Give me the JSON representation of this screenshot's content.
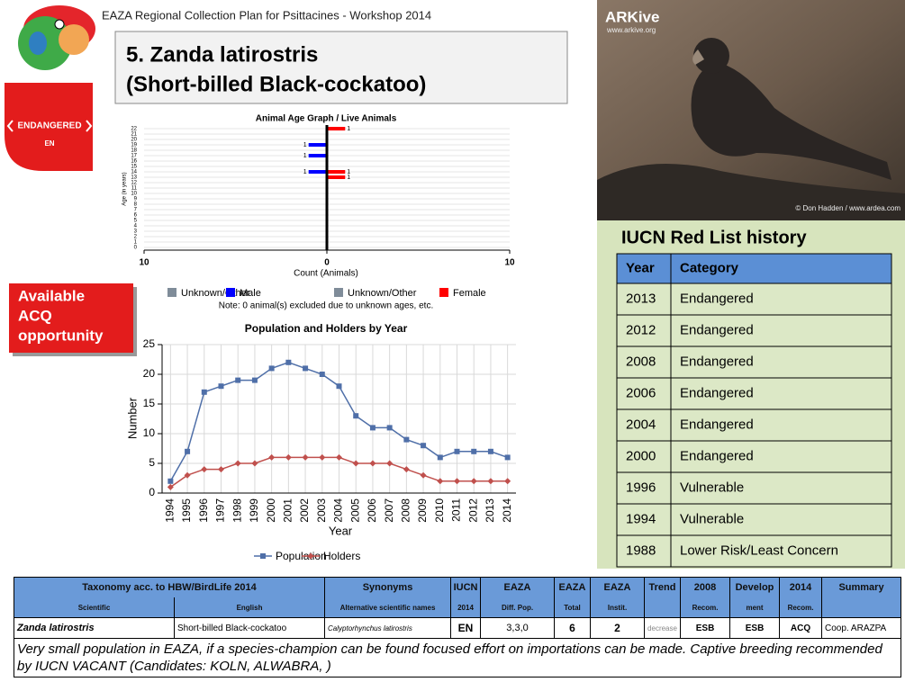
{
  "header": {
    "text": "EAZA Regional Collection Plan for Psittacines - Workshop 2014"
  },
  "title": {
    "line1": "5. Zanda latirostris",
    "line2": "(Short-billed Black-cockatoo)"
  },
  "status": {
    "label": "ENDANGERED",
    "code": "EN"
  },
  "opportunity": {
    "lines": [
      "Available",
      "ACQ",
      "opportunity"
    ]
  },
  "photo": {
    "brand": "ARKive",
    "url": "www.arkive.org",
    "credit": "© Don Hadden / www.ardea.com"
  },
  "chart_data": [
    {
      "type": "bar",
      "orientation": "horizontal",
      "title": "Animal Age Graph / Live Animals",
      "x_label": "Count (Animals)",
      "y_label": "Age (in years)",
      "categories": [
        "0",
        "1",
        "2",
        "3",
        "4",
        "5",
        "6",
        "7",
        "8",
        "9",
        "10",
        "11",
        "12",
        "13",
        "14",
        "15",
        "16",
        "17",
        "18",
        "19",
        "20",
        "21",
        "22"
      ],
      "series": [
        {
          "name": "Unknown/Other",
          "color": "#7f8c99",
          "side": "left",
          "values": [
            null,
            null,
            null,
            null,
            null,
            null,
            null,
            null,
            null,
            null,
            null,
            null,
            null,
            null,
            null,
            null,
            null,
            null,
            null,
            null,
            null,
            null,
            null
          ]
        },
        {
          "name": "Male",
          "color": "#0000ff",
          "side": "left",
          "values": [
            null,
            null,
            null,
            null,
            null,
            null,
            null,
            null,
            null,
            null,
            null,
            null,
            null,
            null,
            1,
            null,
            null,
            1,
            null,
            1,
            null,
            null,
            null
          ]
        },
        {
          "name": "Unknown/Other",
          "color": "#7f8c99",
          "side": "right",
          "values": [
            null,
            null,
            null,
            null,
            null,
            null,
            null,
            null,
            null,
            null,
            null,
            null,
            null,
            null,
            null,
            null,
            null,
            null,
            null,
            null,
            null,
            null,
            null
          ]
        },
        {
          "name": "Female",
          "color": "#ff0000",
          "side": "right",
          "values": [
            null,
            null,
            null,
            null,
            null,
            null,
            null,
            null,
            null,
            null,
            null,
            null,
            null,
            1,
            1,
            null,
            null,
            null,
            null,
            null,
            null,
            null,
            1
          ]
        }
      ],
      "xlim": [
        -10,
        10
      ],
      "xticks": [
        {
          "value": -10,
          "label": "10"
        },
        0,
        10
      ],
      "grid": true,
      "note": "Note: 0 animal(s) excluded due to unknown ages, etc."
    },
    {
      "type": "line",
      "title": "Population and Holders by Year",
      "x_label": "Year",
      "y_label": "Number",
      "categories": [
        "1994",
        "1995",
        "1996",
        "1997",
        "1998",
        "1999",
        "2000",
        "2001",
        "2002",
        "2003",
        "2004",
        "2005",
        "2006",
        "2007",
        "2008",
        "2009",
        "2010",
        "2011",
        "2012",
        "2013",
        "2014"
      ],
      "series": [
        {
          "name": "Population",
          "color": "#4f6fa8",
          "marker": "square",
          "values": [
            2,
            7,
            17,
            18,
            19,
            19,
            21,
            22,
            21,
            20,
            18,
            13,
            11,
            11,
            9,
            8,
            6,
            7,
            7,
            7,
            6
          ]
        },
        {
          "name": "Holders",
          "color": "#c0504d",
          "marker": "diamond",
          "values": [
            1,
            3,
            4,
            4,
            5,
            5,
            6,
            6,
            6,
            6,
            6,
            5,
            5,
            5,
            4,
            3,
            2,
            2,
            2,
            2,
            2
          ]
        }
      ],
      "ylim": [
        0,
        25
      ],
      "yticks": [
        0,
        5,
        10,
        15,
        20,
        25
      ],
      "grid": true,
      "legend": "bottom"
    }
  ],
  "iucn": {
    "title": "IUCN Red List history",
    "columns": [
      "Year",
      "Category"
    ],
    "rows": [
      [
        "2013",
        "Endangered"
      ],
      [
        "2012",
        "Endangered"
      ],
      [
        "2008",
        "Endangered"
      ],
      [
        "2006",
        "Endangered"
      ],
      [
        "2004",
        "Endangered"
      ],
      [
        "2000",
        "Endangered"
      ],
      [
        "1996",
        "Vulnerable"
      ],
      [
        "1994",
        "Vulnerable"
      ],
      [
        "1988",
        "Lower Risk/Least Concern"
      ]
    ]
  },
  "summary_table": {
    "group": "Taxonomy acc. to HBW/BirdLife 2014",
    "columns": [
      {
        "bottom": "Scientific"
      },
      {
        "bottom": "English"
      },
      {
        "top": "Synonyms",
        "bottom": "Alternative scientific names"
      },
      {
        "top": "IUCN",
        "bottom": "2014"
      },
      {
        "top": "EAZA",
        "bottom": "Diff. Pop."
      },
      {
        "top": "EAZA",
        "bottom": "Total"
      },
      {
        "top": "EAZA",
        "bottom": "Instit."
      },
      {
        "top": "Trend"
      },
      {
        "top": "2008",
        "bottom": "Recom."
      },
      {
        "top": "Develop",
        "bottom": "ment"
      },
      {
        "top": "2014",
        "bottom": "Recom."
      },
      {
        "top": "Summary"
      }
    ],
    "row": [
      "Zanda latirostris",
      "Short-billed Black-cockatoo",
      "Calyptorhynchus latirostris",
      "EN",
      "3,3,0",
      "6",
      "2",
      "decrease",
      "ESB",
      "ESB",
      "ACQ",
      "Coop. ARAZPA"
    ],
    "note": "Very small population in EAZA, if a species-champion can be found focused effort on importations can be made. Captive breeding recommended by IUCN VACANT (Candidates: KOLN, ALWABRA, )"
  }
}
